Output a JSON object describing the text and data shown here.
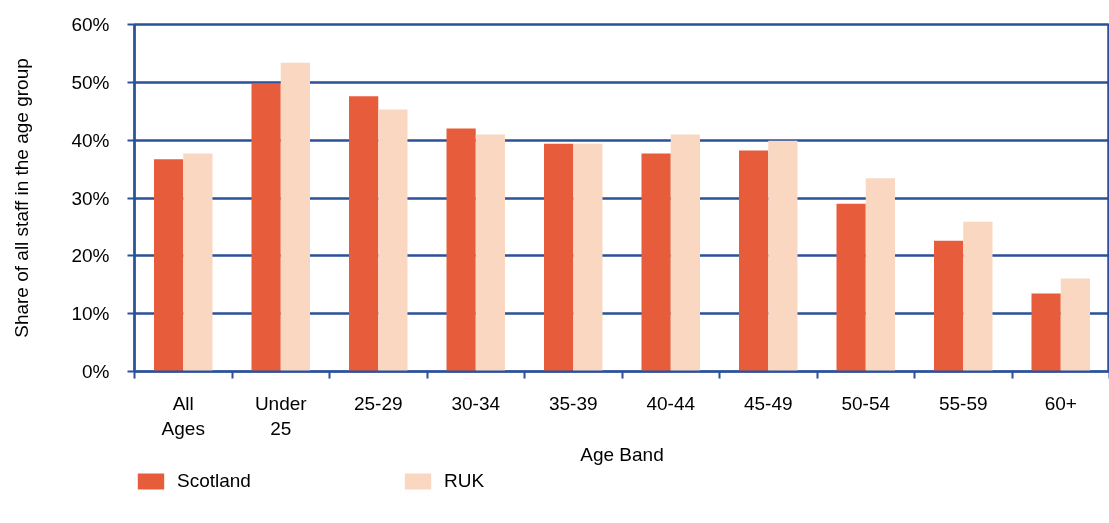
{
  "chart_data": {
    "type": "bar",
    "xlabel": "Age Band",
    "ylabel": "Share of all staff in the age group",
    "categories": [
      "All Ages",
      "Under 25",
      "25-29",
      "30-34",
      "35-39",
      "40-44",
      "45-49",
      "50-54",
      "55-59",
      "60+"
    ],
    "series": [
      {
        "name": "Scotland",
        "color": "#e75c3b",
        "values": [
          36.7,
          49.7,
          47.6,
          42.0,
          39.4,
          37.7,
          38.2,
          29.0,
          22.6,
          13.5
        ]
      },
      {
        "name": "RUK",
        "color": "#fad7c0",
        "values": [
          37.7,
          53.4,
          45.3,
          41.0,
          39.4,
          41.0,
          39.9,
          33.4,
          25.9,
          16.1
        ]
      }
    ],
    "ylim": [
      0,
      60
    ],
    "yticks": [
      {
        "value": 0,
        "label": "0%"
      },
      {
        "value": 10,
        "label": "10%"
      },
      {
        "value": 20,
        "label": "20%"
      },
      {
        "value": 30,
        "label": "30%"
      },
      {
        "value": 40,
        "label": "40%"
      },
      {
        "value": 50,
        "label": "50%"
      },
      {
        "value": 60,
        "label": "60%"
      }
    ],
    "grid": "y",
    "legend": "bottom"
  }
}
